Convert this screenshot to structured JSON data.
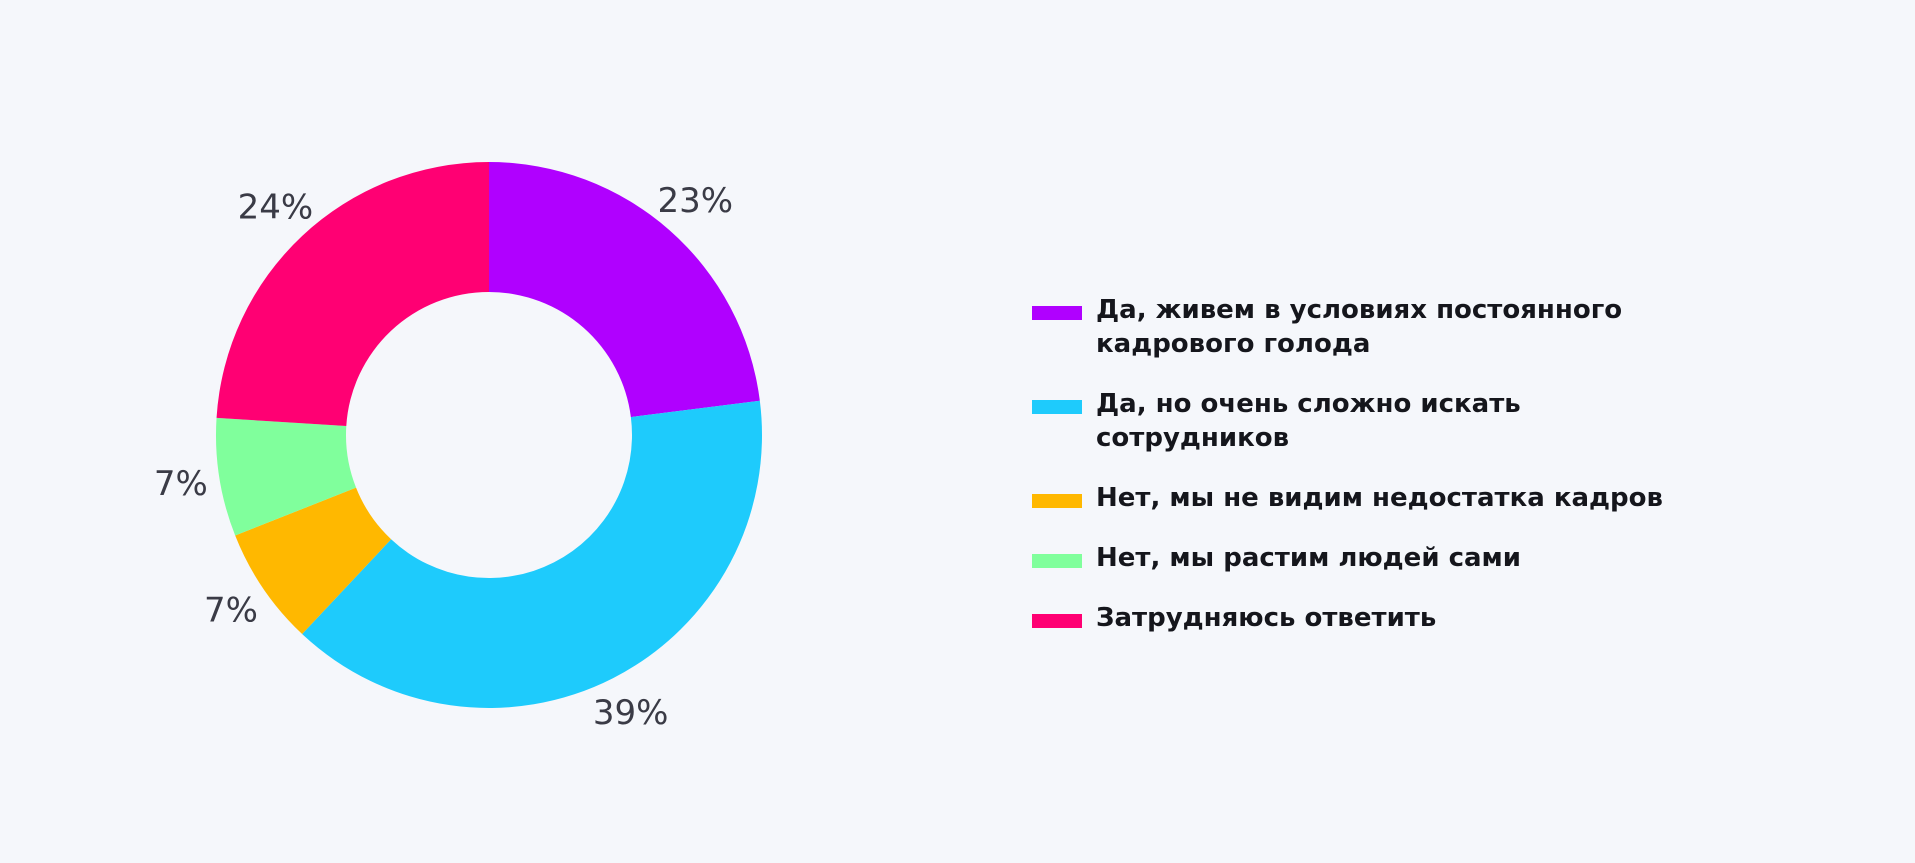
{
  "chart_data": {
    "type": "pie",
    "variant": "donut",
    "start_angle_deg": 0,
    "direction": "clockwise",
    "categories": [
      "Да, живем в условиях постоянного кадрового голода",
      "Да, но очень сложно искать сотрудников",
      "Нет, мы не видим недостатка кадров",
      "Нет, мы растим людей сами",
      "Затрудняюсь ответить"
    ],
    "values": [
      23,
      39,
      7,
      7,
      24
    ],
    "labels": [
      "23%",
      "39%",
      "7%",
      "7%",
      "24%"
    ],
    "colors": [
      "#b000ff",
      "#1ecbfc",
      "#ffb800",
      "#80ff9c",
      "#ff0073"
    ],
    "legend_position": "right"
  }
}
